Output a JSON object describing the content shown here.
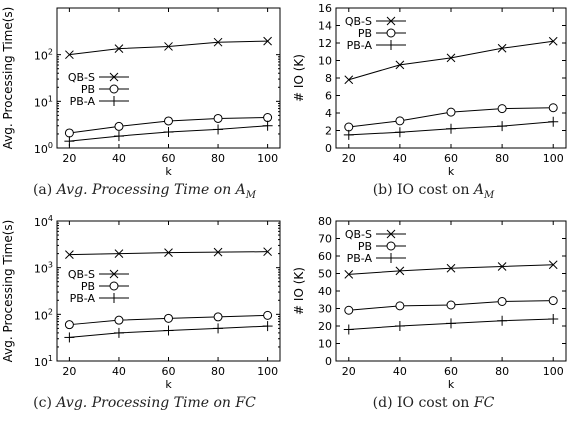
{
  "chart_data": [
    {
      "id": "a",
      "type": "line",
      "caption_prefix": "(a) ",
      "caption_text": "Avg. Processing Time on ",
      "caption_math": "A",
      "caption_sub": "M",
      "caption_italic": true,
      "xlabel": "k",
      "ylabel": "Avg. Processing Time(s)",
      "yscale": "log",
      "ylim": [
        1,
        1000
      ],
      "xlim": [
        15,
        105
      ],
      "yticks": [
        1,
        10,
        100
      ],
      "ytick_labels": [
        {
          "base": "10",
          "exp": "0"
        },
        {
          "base": "10",
          "exp": "1"
        },
        {
          "base": "10",
          "exp": "2"
        }
      ],
      "x": [
        20,
        40,
        60,
        80,
        100
      ],
      "xtick_labels": [
        "20",
        "40",
        "60",
        "80",
        "100"
      ],
      "legend": "top-left, below first series",
      "series": [
        {
          "name": "QB-S",
          "marker": "x",
          "values": [
            100,
            135,
            150,
            185,
            195
          ]
        },
        {
          "name": "PB",
          "marker": "o",
          "values": [
            2.1,
            2.9,
            3.8,
            4.3,
            4.5
          ]
        },
        {
          "name": "PB-A",
          "marker": "+",
          "values": [
            1.4,
            1.8,
            2.2,
            2.5,
            3.0
          ]
        }
      ]
    },
    {
      "id": "b",
      "type": "line",
      "caption_prefix": "(b) ",
      "caption_text": "IO cost on ",
      "caption_math": "A",
      "caption_sub": "M",
      "caption_italic": false,
      "xlabel": "k",
      "ylabel": "# IO (K)",
      "yscale": "linear",
      "ylim": [
        0,
        16
      ],
      "xlim": [
        15,
        105
      ],
      "yticks": [
        0,
        2,
        4,
        6,
        8,
        10,
        12,
        14,
        16
      ],
      "ytick_labels": [
        "0",
        "2",
        "4",
        "6",
        "8",
        "10",
        "12",
        "14",
        "16"
      ],
      "x": [
        20,
        40,
        60,
        80,
        100
      ],
      "xtick_labels": [
        "20",
        "40",
        "60",
        "80",
        "100"
      ],
      "legend": "top-left",
      "series": [
        {
          "name": "QB-S",
          "marker": "x",
          "values": [
            7.8,
            9.5,
            10.3,
            11.4,
            12.2
          ]
        },
        {
          "name": "PB",
          "marker": "o",
          "values": [
            2.4,
            3.1,
            4.1,
            4.5,
            4.6
          ]
        },
        {
          "name": "PB-A",
          "marker": "+",
          "values": [
            1.5,
            1.8,
            2.2,
            2.5,
            3.0
          ]
        }
      ]
    },
    {
      "id": "c",
      "type": "line",
      "caption_prefix": "(c) ",
      "caption_text": "Avg. Processing Time on ",
      "caption_math": "FC",
      "caption_sub": "",
      "caption_italic": true,
      "xlabel": "k",
      "ylabel": "Avg. Processing Time(s)",
      "yscale": "log",
      "ylim": [
        10,
        10000
      ],
      "xlim": [
        15,
        105
      ],
      "yticks": [
        10,
        100,
        1000,
        10000
      ],
      "ytick_labels": [
        {
          "base": "10",
          "exp": "1"
        },
        {
          "base": "10",
          "exp": "2"
        },
        {
          "base": "10",
          "exp": "3"
        },
        {
          "base": "10",
          "exp": "4"
        }
      ],
      "x": [
        20,
        40,
        60,
        80,
        100
      ],
      "xtick_labels": [
        "20",
        "40",
        "60",
        "80",
        "100"
      ],
      "legend": "top-left, below first series",
      "series": [
        {
          "name": "QB-S",
          "marker": "x",
          "values": [
            1900,
            2000,
            2100,
            2150,
            2200
          ]
        },
        {
          "name": "PB",
          "marker": "o",
          "values": [
            60,
            75,
            82,
            88,
            95
          ]
        },
        {
          "name": "PB-A",
          "marker": "+",
          "values": [
            32,
            40,
            45,
            50,
            56
          ]
        }
      ]
    },
    {
      "id": "d",
      "type": "line",
      "caption_prefix": "(d) ",
      "caption_text": "IO cost on ",
      "caption_math": "FC",
      "caption_sub": "",
      "caption_italic": false,
      "xlabel": "k",
      "ylabel": "# IO (K)",
      "yscale": "linear",
      "ylim": [
        0,
        80
      ],
      "xlim": [
        15,
        105
      ],
      "yticks": [
        0,
        10,
        20,
        30,
        40,
        50,
        60,
        70,
        80
      ],
      "ytick_labels": [
        "0",
        "10",
        "20",
        "30",
        "40",
        "50",
        "60",
        "70",
        "80"
      ],
      "x": [
        20,
        40,
        60,
        80,
        100
      ],
      "xtick_labels": [
        "20",
        "40",
        "60",
        "80",
        "100"
      ],
      "legend": "top-left",
      "series": [
        {
          "name": "QB-S",
          "marker": "x",
          "values": [
            49.5,
            51.5,
            53,
            54,
            55
          ]
        },
        {
          "name": "PB",
          "marker": "o",
          "values": [
            29,
            31.5,
            32,
            34,
            34.5
          ]
        },
        {
          "name": "PB-A",
          "marker": "+",
          "values": [
            18,
            20,
            21.5,
            23,
            24
          ]
        }
      ]
    }
  ]
}
